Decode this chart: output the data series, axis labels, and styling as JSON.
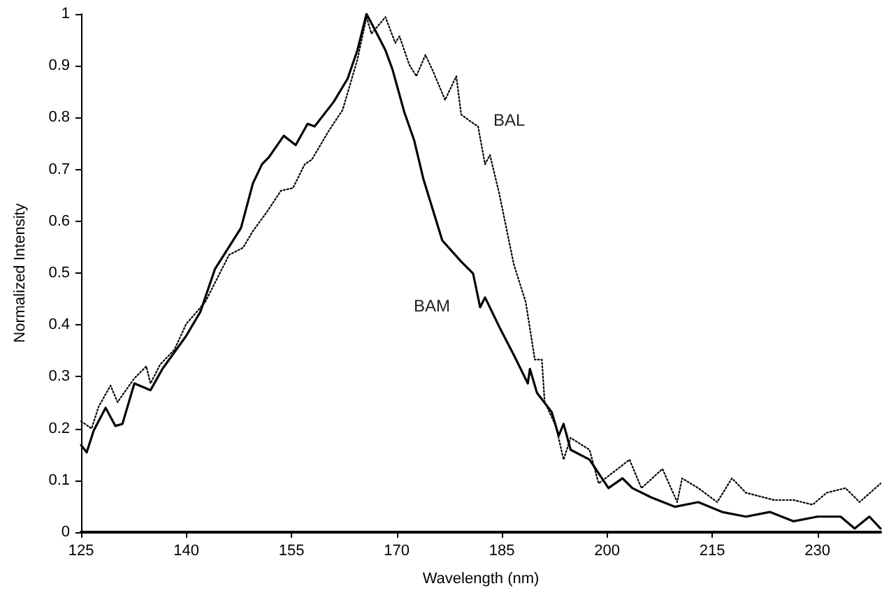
{
  "chart_data": {
    "type": "line",
    "xlabel": "Wavelength (nm)",
    "ylabel": "Normalized Intensity",
    "xlim": [
      125,
      239
    ],
    "xticks": [
      125,
      140,
      155,
      170,
      185,
      200,
      215,
      230
    ],
    "ylim": [
      0,
      1
    ],
    "yticks": [
      0,
      0.1,
      0.2,
      0.3,
      0.4,
      0.5,
      0.6,
      0.7,
      0.8,
      0.9,
      1
    ],
    "grid": false,
    "marker": "none",
    "annotations": [
      "BAL",
      "BAM"
    ],
    "series": [
      {
        "color": "#000000",
        "line_style": "solid",
        "x": [
          125,
          125.8,
          126.8,
          128.5,
          129.9,
          130.9,
          132.6,
          134.9,
          136.6,
          140,
          142,
          144.1,
          147.8,
          149.5,
          150.8,
          151.8,
          153.9,
          155.6,
          157.3,
          158.3,
          161,
          163,
          164.4,
          165.7,
          167,
          168.4,
          169.4,
          171.1,
          172.5,
          173.8,
          176.5,
          179.2,
          180.9,
          181.9,
          182.6,
          184.6,
          186.7,
          188.7,
          189,
          190,
          192.1,
          193.1,
          193.8,
          194.8,
          197.5,
          200.2,
          202.2,
          203.6,
          206.3,
          209.7,
          213,
          216.4,
          219.8,
          223.2,
          226.6,
          230,
          233.3,
          235.3,
          237.4,
          239
        ],
        "values": [
          0.168,
          0.154,
          0.196,
          0.24,
          0.205,
          0.209,
          0.287,
          0.274,
          0.315,
          0.379,
          0.425,
          0.508,
          0.587,
          0.673,
          0.71,
          0.724,
          0.765,
          0.747,
          0.788,
          0.783,
          0.83,
          0.875,
          0.93,
          1.0,
          0.967,
          0.93,
          0.893,
          0.81,
          0.756,
          0.682,
          0.563,
          0.522,
          0.499,
          0.434,
          0.453,
          0.397,
          0.342,
          0.287,
          0.315,
          0.269,
          0.232,
          0.186,
          0.209,
          0.159,
          0.14,
          0.085,
          0.104,
          0.085,
          0.067,
          0.049,
          0.058,
          0.039,
          0.03,
          0.039,
          0.021,
          0.03,
          0.03,
          0.007,
          0.03,
          0.007
        ]
      },
      {
        "color": "#000000",
        "line_style": "dotted",
        "x": [
          125,
          126.5,
          127.5,
          129.2,
          130.2,
          132.6,
          134.3,
          134.9,
          136.3,
          138.3,
          140,
          142.7,
          146.1,
          148.1,
          149.5,
          151.5,
          153.5,
          155.2,
          156.9,
          157.9,
          160.3,
          162.3,
          164.4,
          165.7,
          166.4,
          168.4,
          169.8,
          170.4,
          171.8,
          172.8,
          174.1,
          175.2,
          176.9,
          178.5,
          179.2,
          180.6,
          181.6,
          182.6,
          183.3,
          184.6,
          186.7,
          188.4,
          189.7,
          190.7,
          191.1,
          192.7,
          193.8,
          194.8,
          197.5,
          198.8,
          201.5,
          203.2,
          204.9,
          207.9,
          210,
          210.7,
          213,
          215.7,
          217.8,
          219.8,
          223.8,
          226.6,
          229.3,
          231.3,
          234,
          236,
          239
        ],
        "values": [
          0.214,
          0.2,
          0.242,
          0.283,
          0.251,
          0.297,
          0.32,
          0.287,
          0.324,
          0.352,
          0.402,
          0.444,
          0.535,
          0.549,
          0.581,
          0.618,
          0.659,
          0.664,
          0.71,
          0.719,
          0.774,
          0.815,
          0.912,
          0.994,
          0.962,
          0.994,
          0.944,
          0.957,
          0.902,
          0.88,
          0.921,
          0.889,
          0.834,
          0.88,
          0.806,
          0.792,
          0.783,
          0.71,
          0.728,
          0.655,
          0.517,
          0.444,
          0.333,
          0.333,
          0.251,
          0.205,
          0.14,
          0.182,
          0.159,
          0.094,
          0.122,
          0.14,
          0.085,
          0.122,
          0.058,
          0.104,
          0.085,
          0.058,
          0.104,
          0.076,
          0.062,
          0.062,
          0.053,
          0.076,
          0.085,
          0.058,
          0.094
        ]
      }
    ]
  }
}
